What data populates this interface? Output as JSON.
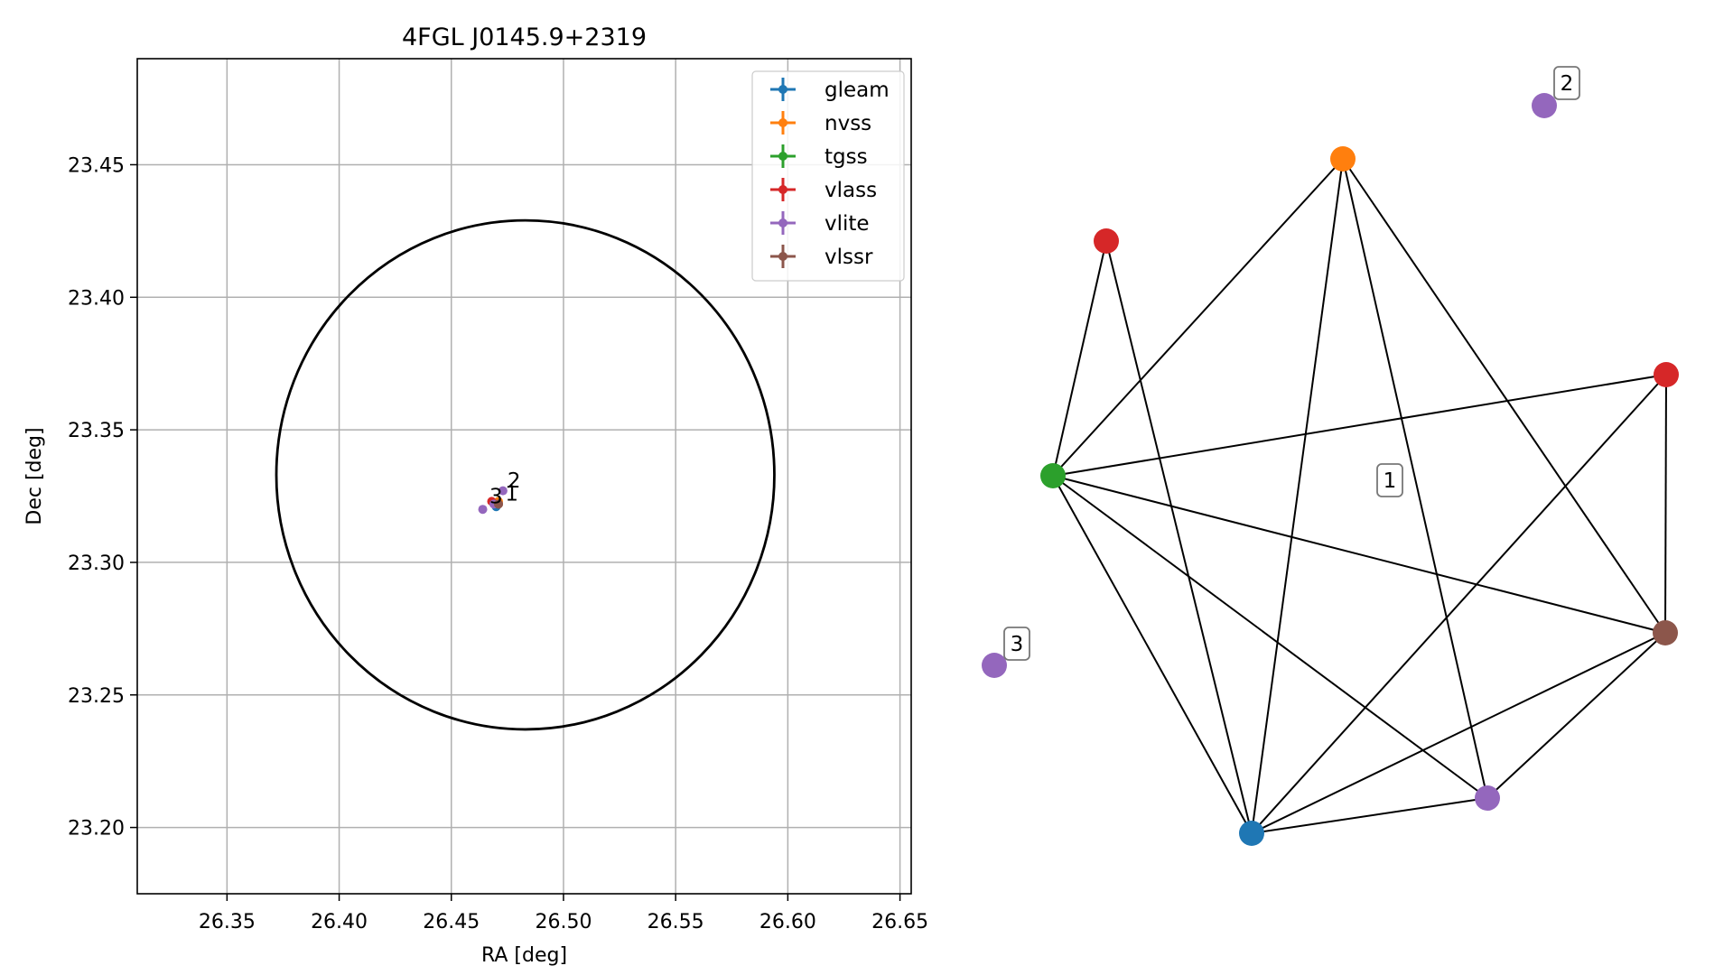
{
  "chart_data": [
    {
      "type": "scatter",
      "title": "4FGL J0145.9+2319",
      "xlabel": "RA [deg]",
      "ylabel": "Dec [deg]",
      "xlim": [
        26.31,
        26.655
      ],
      "ylim": [
        23.175,
        23.49
      ],
      "xticks": [
        "26.35",
        "26.40",
        "26.45",
        "26.50",
        "26.55",
        "26.60",
        "26.65"
      ],
      "yticks": [
        "23.20",
        "23.25",
        "23.30",
        "23.35",
        "23.40",
        "23.45"
      ],
      "grid": true,
      "legend_position": "top-right",
      "error_ellipse": {
        "ra_center": 26.483,
        "dec_center": 23.333,
        "ra_radius": 0.111,
        "dec_radius": 0.096,
        "color": "#000000"
      },
      "series": [
        {
          "name": "gleam",
          "color": "#1f77b4",
          "points": [
            {
              "ra": 26.47,
              "dec": 23.321
            }
          ]
        },
        {
          "name": "nvss",
          "color": "#ff7f0e",
          "points": [
            {
              "ra": 26.471,
              "dec": 23.323
            }
          ]
        },
        {
          "name": "tgss",
          "color": "#2ca02c",
          "points": [
            {
              "ra": 26.471,
              "dec": 23.322
            }
          ]
        },
        {
          "name": "vlass",
          "color": "#d62728",
          "points": [
            {
              "ra": 26.468,
              "dec": 23.323
            },
            {
              "ra": 26.471,
              "dec": 23.322
            }
          ]
        },
        {
          "name": "vlite",
          "color": "#9467bd",
          "points": [
            {
              "ra": 26.464,
              "dec": 23.32
            },
            {
              "ra": 26.473,
              "dec": 23.327
            },
            {
              "ra": 26.469,
              "dec": 23.322
            }
          ]
        },
        {
          "name": "vlssr",
          "color": "#8c564b",
          "points": [
            {
              "ra": 26.471,
              "dec": 23.322
            }
          ]
        }
      ],
      "annotations": [
        {
          "text": "1",
          "ra": 26.474,
          "dec": 23.325
        },
        {
          "text": "2",
          "ra": 26.475,
          "dec": 23.33
        },
        {
          "text": "3",
          "ra": 26.467,
          "dec": 23.324
        }
      ]
    },
    {
      "type": "network",
      "nodes": [
        {
          "id": "nvss_0",
          "source": "nvss",
          "color": "#ff7f0e"
        },
        {
          "id": "vlass_0",
          "source": "vlass",
          "color": "#d62728"
        },
        {
          "id": "vlass_1",
          "source": "vlass",
          "color": "#d62728"
        },
        {
          "id": "tgss_0",
          "source": "tgss",
          "color": "#2ca02c"
        },
        {
          "id": "vlssr_0",
          "source": "vlssr",
          "color": "#8c564b"
        },
        {
          "id": "vlite_0",
          "source": "vlite",
          "color": "#9467bd"
        },
        {
          "id": "gleam_0",
          "source": "gleam",
          "color": "#1f77b4"
        },
        {
          "id": "vlite_1",
          "source": "vlite",
          "color": "#9467bd"
        },
        {
          "id": "vlite_2",
          "source": "vlite",
          "color": "#9467bd"
        }
      ],
      "edges": [
        [
          "nvss_0",
          "tgss_0"
        ],
        [
          "nvss_0",
          "gleam_0"
        ],
        [
          "nvss_0",
          "vlite_0"
        ],
        [
          "nvss_0",
          "vlssr_0"
        ],
        [
          "vlass_0",
          "tgss_0"
        ],
        [
          "vlass_0",
          "gleam_0"
        ],
        [
          "vlass_1",
          "tgss_0"
        ],
        [
          "vlass_1",
          "gleam_0"
        ],
        [
          "vlass_1",
          "vlssr_0"
        ],
        [
          "tgss_0",
          "vlssr_0"
        ],
        [
          "tgss_0",
          "gleam_0"
        ],
        [
          "tgss_0",
          "vlite_0"
        ],
        [
          "vlssr_0",
          "gleam_0"
        ],
        [
          "vlssr_0",
          "vlite_0"
        ],
        [
          "gleam_0",
          "vlite_0"
        ]
      ],
      "labels": [
        {
          "text": "1"
        },
        {
          "text": "2"
        },
        {
          "text": "3"
        }
      ]
    }
  ]
}
